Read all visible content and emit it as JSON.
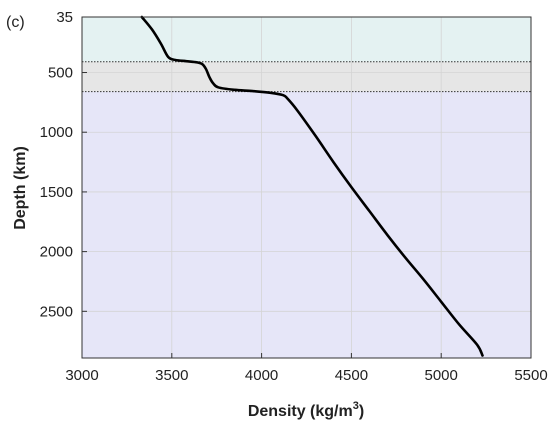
{
  "chart_data": {
    "type": "line",
    "panel_label": "(c)",
    "xlabel_prefix": "Density (kg/m",
    "xlabel_sup": "3",
    "xlabel_suffix": ")",
    "ylabel": "Depth (km)",
    "xlim": [
      3000,
      5500
    ],
    "ylim": [
      35,
      2891
    ],
    "y_reversed": true,
    "grid": true,
    "x_ticks": [
      3000,
      3500,
      4000,
      4500,
      5000,
      5500
    ],
    "x_tick_labels": [
      "3000",
      "3500",
      "4000",
      "4500",
      "5000",
      "5500"
    ],
    "y_ticks": [
      35,
      500,
      1000,
      1500,
      2000,
      2500
    ],
    "y_tick_labels": [
      "35",
      "500",
      "1000",
      "1500",
      "2000",
      "2500"
    ],
    "regions": [
      {
        "y_from": 35,
        "y_to": 410,
        "color": "#e4f2f2"
      },
      {
        "y_from": 410,
        "y_to": 660,
        "color": "#e6e6e6"
      },
      {
        "y_from": 660,
        "y_to": 2891,
        "color": "#e6e6f8"
      }
    ],
    "boundaries": [
      410,
      660
    ],
    "series": [
      {
        "color": "#000000",
        "x": [
          3333,
          3390,
          3440,
          3480,
          3520,
          3580,
          3640,
          3670,
          3690,
          3710,
          3730,
          3760,
          3850,
          3950,
          4050,
          4120,
          4145,
          4200,
          4300,
          4400,
          4500,
          4600,
          4700,
          4800,
          4900,
          5000,
          5100,
          5200,
          5230
        ],
        "y": [
          35,
          140,
          260,
          370,
          395,
          405,
          415,
          430,
          470,
          540,
          590,
          625,
          645,
          655,
          670,
          690,
          720,
          820,
          1030,
          1250,
          1460,
          1660,
          1860,
          2050,
          2230,
          2420,
          2610,
          2780,
          2870
        ]
      }
    ]
  }
}
